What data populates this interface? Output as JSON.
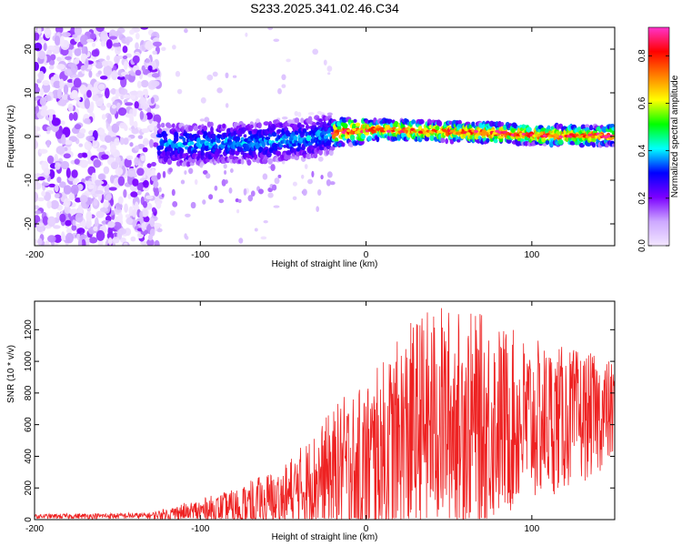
{
  "figure": {
    "title": "S233.2025.341.02.46.C34"
  },
  "chart_data": [
    {
      "type": "heatmap",
      "xlabel": "Height of straight line (km)",
      "ylabel": "Frequency (Hz)",
      "xlim": [
        -200,
        150
      ],
      "ylim": [
        -25,
        25
      ],
      "xticks": [
        -200,
        -100,
        0,
        100
      ],
      "yticks": [
        -20,
        -10,
        0,
        10,
        20
      ],
      "grid": false,
      "colorbar": {
        "label": "Normalized spectral amplitude",
        "range": [
          0.0,
          0.92
        ],
        "ticks": [
          0.0,
          0.2,
          0.4,
          0.6,
          0.8
        ],
        "colormap": [
          "#f2e6ff",
          "#cda8ff",
          "#7b00ff",
          "#0000ff",
          "#00ffff",
          "#00ff00",
          "#ffff00",
          "#ff8000",
          "#ff0000",
          "#ff33cc"
        ]
      },
      "ridge_center_hz": [
        [
          -125,
          -1.5
        ],
        [
          -110,
          -2
        ],
        [
          -90,
          -1.5
        ],
        [
          -70,
          -1.5
        ],
        [
          -50,
          -1
        ],
        [
          -35,
          -0.5
        ],
        [
          -20,
          0.8
        ],
        [
          0,
          1.5
        ],
        [
          20,
          1.5
        ],
        [
          40,
          1.2
        ],
        [
          60,
          1
        ],
        [
          80,
          0.8
        ],
        [
          100,
          0.4
        ],
        [
          120,
          0.2
        ],
        [
          150,
          0.2
        ]
      ]
    },
    {
      "type": "line",
      "xlabel": "Height of straight line (km)",
      "ylabel": "SNR (10 * v/v)",
      "xlim": [
        -200,
        150
      ],
      "ylim": [
        0,
        1380
      ],
      "xticks": [
        -200,
        -100,
        0,
        100
      ],
      "yticks": [
        0,
        200,
        400,
        600,
        800,
        1000,
        1200
      ],
      "grid": false,
      "series_color": "#ee2222",
      "envelope": [
        {
          "x": -200,
          "base": 20,
          "amp": 15
        },
        {
          "x": -130,
          "base": 25,
          "amp": 20
        },
        {
          "x": -110,
          "base": 45,
          "amp": 60
        },
        {
          "x": -80,
          "base": 70,
          "amp": 120
        },
        {
          "x": -50,
          "base": 130,
          "amp": 220
        },
        {
          "x": -30,
          "base": 250,
          "amp": 320
        },
        {
          "x": -15,
          "base": 320,
          "amp": 450
        },
        {
          "x": 0,
          "base": 330,
          "amp": 550
        },
        {
          "x": 15,
          "base": 420,
          "amp": 650
        },
        {
          "x": 30,
          "base": 580,
          "amp": 720
        },
        {
          "x": 45,
          "base": 640,
          "amp": 720
        },
        {
          "x": 70,
          "base": 620,
          "amp": 680
        },
        {
          "x": 100,
          "base": 620,
          "amp": 520
        },
        {
          "x": 130,
          "base": 650,
          "amp": 420
        },
        {
          "x": 150,
          "base": 680,
          "amp": 320
        }
      ]
    }
  ]
}
